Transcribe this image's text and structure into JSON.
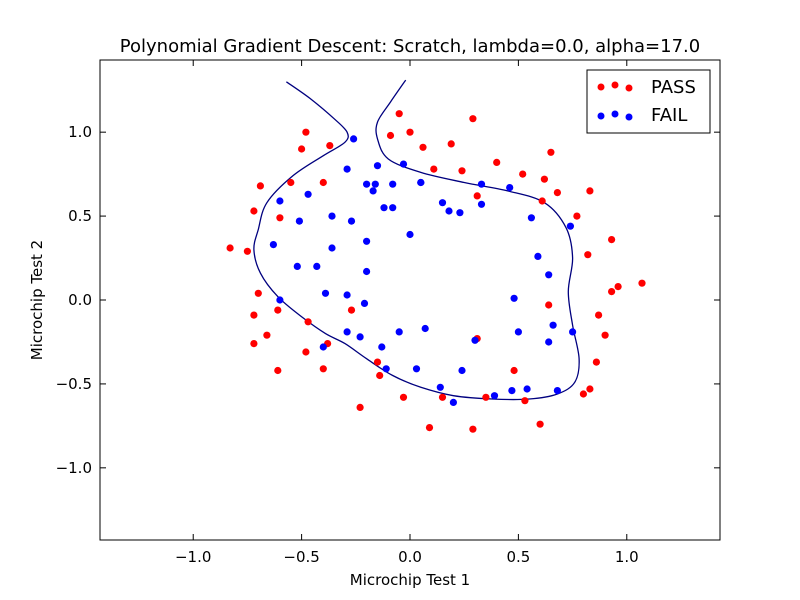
{
  "chart_data": {
    "type": "scatter",
    "title": "Polynomial Gradient Descent: Scratch, lambda=0.0, alpha=17.0",
    "xlabel": "Microchip Test 1",
    "ylabel": "Microchip Test 2",
    "xlim": [
      -1.43,
      1.43
    ],
    "ylim": [
      -1.43,
      1.43
    ],
    "xticks": [
      -1.0,
      -0.5,
      0.0,
      0.5,
      1.0
    ],
    "yticks": [
      -1.0,
      -0.5,
      0.0,
      0.5,
      1.0
    ],
    "xtick_labels": [
      "−1.0",
      "−0.5",
      "0.0",
      "0.5",
      "1.0"
    ],
    "ytick_labels": [
      "−1.0",
      "−0.5",
      "0.0",
      "0.5",
      "1.0"
    ],
    "grid": false,
    "legend_position": "top-right",
    "series": [
      {
        "name": "PASS",
        "color": "#ff0000",
        "points": [
          [
            0.29,
            1.08
          ],
          [
            -0.05,
            1.11
          ],
          [
            -0.48,
            1.0
          ],
          [
            -0.09,
            0.98
          ],
          [
            0.0,
            1.0
          ],
          [
            -0.5,
            0.9
          ],
          [
            -0.37,
            0.92
          ],
          [
            0.06,
            0.91
          ],
          [
            0.19,
            0.93
          ],
          [
            0.65,
            0.88
          ],
          [
            0.4,
            0.82
          ],
          [
            0.52,
            0.75
          ],
          [
            0.62,
            0.72
          ],
          [
            0.11,
            0.78
          ],
          [
            0.24,
            0.77
          ],
          [
            -0.4,
            0.7
          ],
          [
            -0.55,
            0.7
          ],
          [
            -0.69,
            0.68
          ],
          [
            0.31,
            0.62
          ],
          [
            0.68,
            0.64
          ],
          [
            0.83,
            0.65
          ],
          [
            0.61,
            0.59
          ],
          [
            -0.72,
            0.53
          ],
          [
            -0.6,
            0.49
          ],
          [
            0.77,
            0.5
          ],
          [
            -0.83,
            0.31
          ],
          [
            -0.75,
            0.29
          ],
          [
            0.93,
            0.36
          ],
          [
            0.82,
            0.27
          ],
          [
            0.96,
            0.08
          ],
          [
            1.07,
            0.1
          ],
          [
            0.93,
            0.05
          ],
          [
            -0.7,
            0.04
          ],
          [
            0.64,
            -0.03
          ],
          [
            -0.27,
            -0.06
          ],
          [
            -0.61,
            -0.06
          ],
          [
            -0.72,
            -0.09
          ],
          [
            0.87,
            -0.09
          ],
          [
            -0.47,
            -0.13
          ],
          [
            0.9,
            -0.21
          ],
          [
            -0.66,
            -0.21
          ],
          [
            -0.38,
            -0.26
          ],
          [
            0.31,
            -0.23
          ],
          [
            -0.48,
            -0.31
          ],
          [
            -0.72,
            -0.26
          ],
          [
            0.86,
            -0.37
          ],
          [
            -0.15,
            -0.37
          ],
          [
            -0.61,
            -0.42
          ],
          [
            -0.4,
            -0.41
          ],
          [
            -0.14,
            -0.45
          ],
          [
            0.48,
            -0.42
          ],
          [
            0.83,
            -0.53
          ],
          [
            0.8,
            -0.56
          ],
          [
            -0.03,
            -0.58
          ],
          [
            0.15,
            -0.58
          ],
          [
            0.35,
            -0.58
          ],
          [
            0.53,
            -0.6
          ],
          [
            -0.23,
            -0.64
          ],
          [
            0.09,
            -0.76
          ],
          [
            0.29,
            -0.77
          ],
          [
            0.6,
            -0.74
          ]
        ]
      },
      {
        "name": "FAIL",
        "color": "#0000ff",
        "points": [
          [
            -0.26,
            0.96
          ],
          [
            -0.29,
            0.78
          ],
          [
            -0.15,
            0.8
          ],
          [
            -0.03,
            0.81
          ],
          [
            0.05,
            0.7
          ],
          [
            0.05,
            0.7
          ],
          [
            -0.2,
            0.69
          ],
          [
            -0.16,
            0.69
          ],
          [
            -0.08,
            0.69
          ],
          [
            0.33,
            0.69
          ],
          [
            0.46,
            0.67
          ],
          [
            -0.47,
            0.63
          ],
          [
            -0.17,
            0.65
          ],
          [
            -0.6,
            0.59
          ],
          [
            0.15,
            0.58
          ],
          [
            0.33,
            0.57
          ],
          [
            -0.12,
            0.55
          ],
          [
            -0.08,
            0.55
          ],
          [
            0.18,
            0.53
          ],
          [
            0.23,
            0.52
          ],
          [
            -0.36,
            0.5
          ],
          [
            0.56,
            0.49
          ],
          [
            -0.27,
            0.47
          ],
          [
            -0.51,
            0.47
          ],
          [
            0.74,
            0.44
          ],
          [
            0.0,
            0.39
          ],
          [
            -0.2,
            0.35
          ],
          [
            -0.63,
            0.33
          ],
          [
            -0.36,
            0.31
          ],
          [
            0.59,
            0.26
          ],
          [
            -0.52,
            0.2
          ],
          [
            -0.43,
            0.2
          ],
          [
            -0.2,
            0.17
          ],
          [
            0.64,
            0.15
          ],
          [
            -0.39,
            0.04
          ],
          [
            -0.29,
            0.03
          ],
          [
            -0.6,
            0.0
          ],
          [
            0.48,
            0.01
          ],
          [
            -0.21,
            -0.02
          ],
          [
            -0.29,
            -0.19
          ],
          [
            -0.05,
            -0.19
          ],
          [
            0.07,
            -0.17
          ],
          [
            0.5,
            -0.19
          ],
          [
            0.66,
            -0.15
          ],
          [
            0.75,
            -0.19
          ],
          [
            -0.23,
            -0.22
          ],
          [
            0.3,
            -0.24
          ],
          [
            0.64,
            -0.25
          ],
          [
            -0.4,
            -0.28
          ],
          [
            -0.13,
            -0.28
          ],
          [
            -0.11,
            -0.41
          ],
          [
            0.03,
            -0.41
          ],
          [
            0.24,
            -0.42
          ],
          [
            0.14,
            -0.52
          ],
          [
            0.47,
            -0.54
          ],
          [
            0.54,
            -0.53
          ],
          [
            0.68,
            -0.54
          ],
          [
            0.2,
            -0.61
          ],
          [
            0.39,
            -0.57
          ]
        ]
      }
    ],
    "decision_boundary": {
      "color": "#00007f",
      "points": [
        [
          -0.57,
          1.3
        ],
        [
          -0.46,
          1.2
        ],
        [
          -0.35,
          1.08
        ],
        [
          -0.29,
          1.0
        ],
        [
          -0.3,
          0.94
        ],
        [
          -0.4,
          0.86
        ],
        [
          -0.54,
          0.74
        ],
        [
          -0.66,
          0.58
        ],
        [
          -0.7,
          0.42
        ],
        [
          -0.72,
          0.3
        ],
        [
          -0.69,
          0.16
        ],
        [
          -0.61,
          0.02
        ],
        [
          -0.5,
          -0.1
        ],
        [
          -0.39,
          -0.2
        ],
        [
          -0.3,
          -0.26
        ],
        [
          -0.2,
          -0.35
        ],
        [
          -0.08,
          -0.45
        ],
        [
          0.05,
          -0.52
        ],
        [
          0.2,
          -0.57
        ],
        [
          0.38,
          -0.59
        ],
        [
          0.55,
          -0.59
        ],
        [
          0.68,
          -0.56
        ],
        [
          0.76,
          -0.49
        ],
        [
          0.78,
          -0.35
        ],
        [
          0.75,
          -0.15
        ],
        [
          0.73,
          0.05
        ],
        [
          0.75,
          0.25
        ],
        [
          0.72,
          0.43
        ],
        [
          0.62,
          0.58
        ],
        [
          0.45,
          0.65
        ],
        [
          0.25,
          0.7
        ],
        [
          0.05,
          0.76
        ],
        [
          -0.1,
          0.84
        ],
        [
          -0.15,
          0.96
        ],
        [
          -0.15,
          1.06
        ],
        [
          -0.09,
          1.18
        ],
        [
          -0.02,
          1.31
        ]
      ]
    }
  }
}
